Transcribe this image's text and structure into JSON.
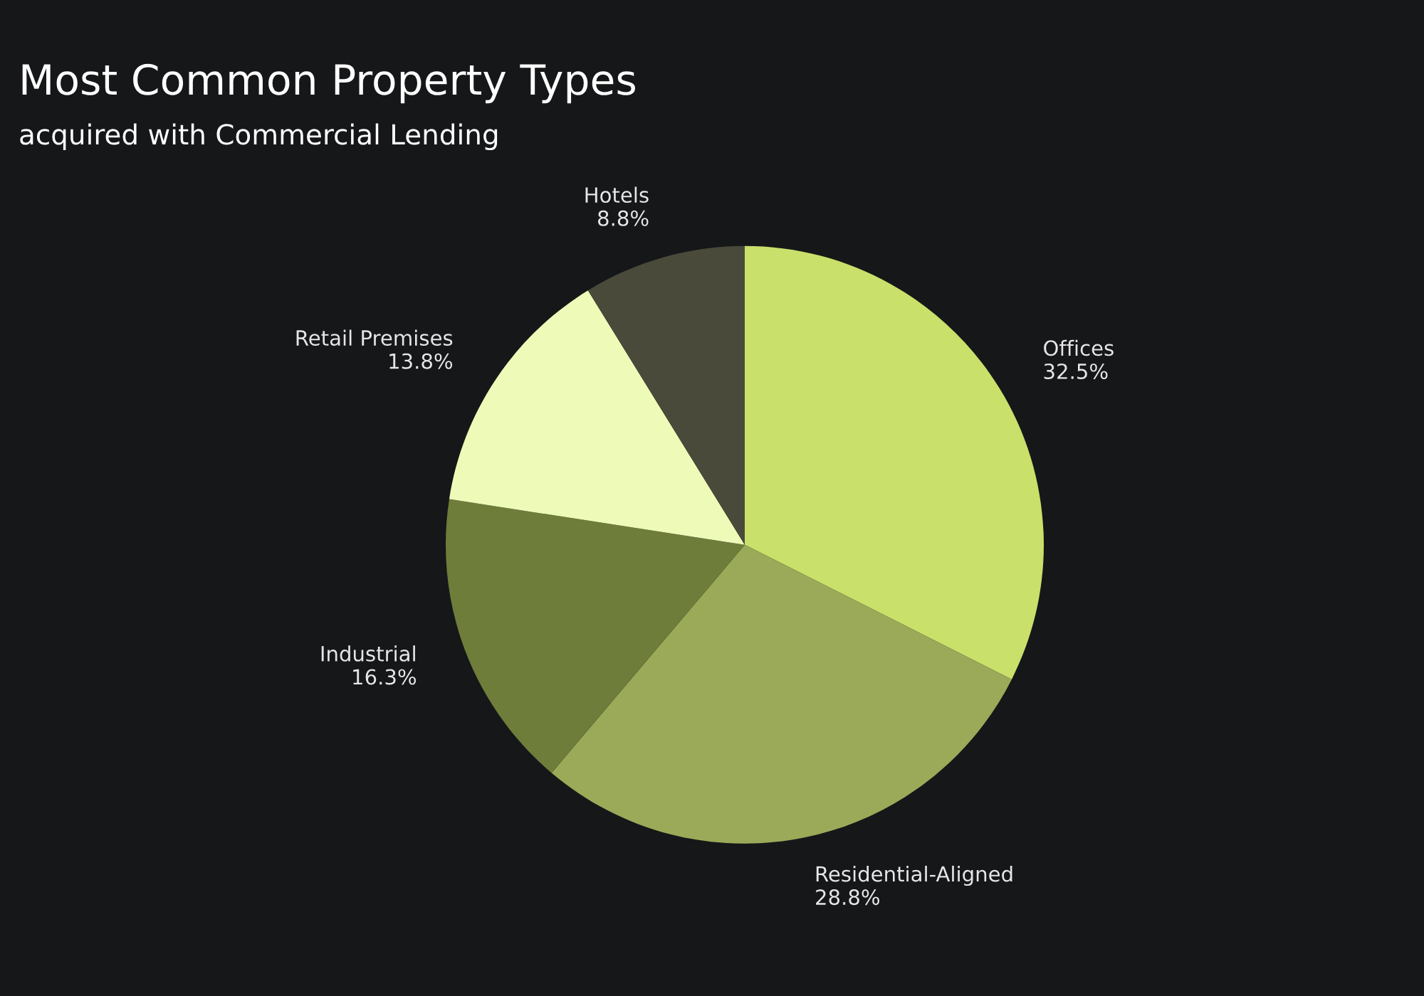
{
  "chart_data": {
    "type": "pie",
    "title": "Most Common Property Types",
    "subtitle": "acquired with Commercial Lending",
    "categories": [
      "Offices",
      "Residential-Aligned",
      "Industrial",
      "Retail Premises",
      "Hotels"
    ],
    "values": [
      32.5,
      28.8,
      16.3,
      13.8,
      8.8
    ],
    "value_labels": [
      "32.5%",
      "28.8%",
      "16.3%",
      "13.8%",
      "8.8%"
    ],
    "colors": [
      "#c9e06a",
      "#9aaa58",
      "#6e7d3a",
      "#eefbb8",
      "#4a4a3a"
    ],
    "legend": false
  }
}
